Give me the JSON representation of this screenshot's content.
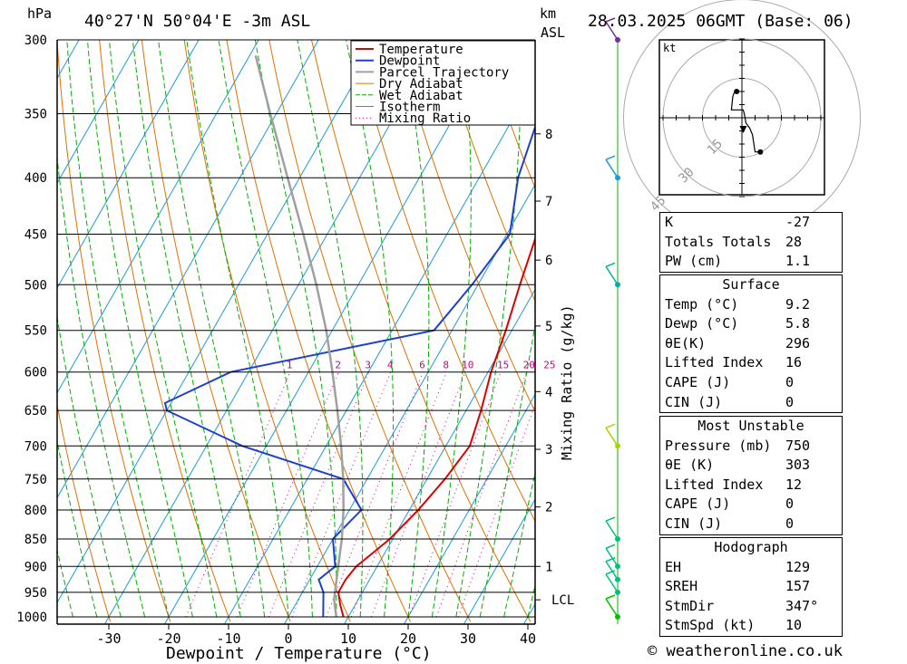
{
  "header": {
    "location": "40°27'N  50°04'E  -3m  ASL",
    "datetime": "28.03.2025  06GMT  (Base: 06)",
    "p_unit": "hPa",
    "km_label": "km",
    "asl_label": "ASL"
  },
  "chart_data": {
    "type": "line",
    "title": "",
    "xlabel": "Dewpoint / Temperature (°C)",
    "ylabel": "hPa",
    "y_scale": "log",
    "xlim": [
      -40,
      40
    ],
    "ylim": [
      1000,
      300
    ],
    "x_ticks": [
      -30,
      -20,
      -10,
      0,
      10,
      20,
      30,
      40
    ],
    "pressure_levels": [
      300,
      350,
      400,
      450,
      500,
      550,
      600,
      650,
      700,
      750,
      800,
      850,
      900,
      950,
      1000
    ],
    "km_ticks": [
      {
        "label": "8",
        "p": 365
      },
      {
        "label": "7",
        "p": 420
      },
      {
        "label": "6",
        "p": 475
      },
      {
        "label": "5",
        "p": 545
      },
      {
        "label": "4",
        "p": 625
      },
      {
        "label": "3",
        "p": 705
      },
      {
        "label": "2",
        "p": 795
      },
      {
        "label": "1",
        "p": 900
      },
      {
        "label": "LCL",
        "p": 965
      }
    ],
    "mixing_ratio_label": "Mixing Ratio (g/kg)",
    "mixing_ratio_values": [
      "1",
      "2",
      "3",
      "4",
      "6",
      "8",
      "10",
      "15",
      "20",
      "25"
    ],
    "legend": {
      "placement": "top-right",
      "entries": [
        {
          "name": "Temperature",
          "color": "#e00000"
        },
        {
          "name": "Dewpoint",
          "color": "#1f3fd0"
        },
        {
          "name": "Parcel Trajectory",
          "color": "#a0a0a0"
        },
        {
          "name": "Dry Adiabat",
          "color": "#e07000"
        },
        {
          "name": "Wet Adiabat",
          "color": "#00b000"
        },
        {
          "name": "Isotherm",
          "color": "#1e9ad6"
        },
        {
          "name": "Mixing Ratio",
          "color": "#d0008a"
        }
      ]
    },
    "series": [
      {
        "name": "Temperature",
        "color": "#e00000",
        "points": [
          {
            "p": 1000,
            "t": 9.2
          },
          {
            "p": 975,
            "t": 7.5
          },
          {
            "p": 950,
            "t": 6.0
          },
          {
            "p": 925,
            "t": 6.0
          },
          {
            "p": 900,
            "t": 6.5
          },
          {
            "p": 875,
            "t": 8.0
          },
          {
            "p": 850,
            "t": 9.5
          },
          {
            "p": 800,
            "t": 11.5
          },
          {
            "p": 750,
            "t": 13.0
          },
          {
            "p": 700,
            "t": 14.0
          },
          {
            "p": 650,
            "t": 12.5
          },
          {
            "p": 600,
            "t": 10.5
          },
          {
            "p": 550,
            "t": 9.0
          },
          {
            "p": 500,
            "t": 7.0
          },
          {
            "p": 450,
            "t": 5.0
          },
          {
            "p": 400,
            "t": 3.5
          },
          {
            "p": 350,
            "t": 0.0
          },
          {
            "p": 300,
            "t": -5.5
          }
        ]
      },
      {
        "name": "Dewpoint",
        "color": "#1f3fd0",
        "points": [
          {
            "p": 1000,
            "t": 5.8
          },
          {
            "p": 950,
            "t": 3.5
          },
          {
            "p": 925,
            "t": 1.5
          },
          {
            "p": 900,
            "t": 3.0
          },
          {
            "p": 850,
            "t": 0.0
          },
          {
            "p": 800,
            "t": 2.0
          },
          {
            "p": 750,
            "t": -4.0
          },
          {
            "p": 700,
            "t": -24.0
          },
          {
            "p": 650,
            "t": -40.0
          },
          {
            "p": 640,
            "t": -41.0
          },
          {
            "p": 600,
            "t": -33.0
          },
          {
            "p": 550,
            "t": -3.0
          },
          {
            "p": 500,
            "t": -1.0
          },
          {
            "p": 450,
            "t": 0.5
          },
          {
            "p": 400,
            "t": -3.5
          },
          {
            "p": 350,
            "t": -6.0
          },
          {
            "p": 300,
            "t": -13.5
          }
        ]
      },
      {
        "name": "Parcel Trajectory",
        "color": "#a0a0a0",
        "points": [
          {
            "p": 1000,
            "t": 8.0
          },
          {
            "p": 965,
            "t": 6.0
          },
          {
            "p": 900,
            "t": 3.5
          },
          {
            "p": 850,
            "t": 1.5
          },
          {
            "p": 800,
            "t": -1.0
          },
          {
            "p": 750,
            "t": -4.0
          },
          {
            "p": 700,
            "t": -7.5
          },
          {
            "p": 650,
            "t": -11.5
          },
          {
            "p": 600,
            "t": -16.0
          },
          {
            "p": 550,
            "t": -21.0
          },
          {
            "p": 500,
            "t": -27.0
          },
          {
            "p": 450,
            "t": -34.0
          },
          {
            "p": 400,
            "t": -42.0
          },
          {
            "p": 350,
            "t": -51.0
          },
          {
            "p": 310,
            "t": -59.0
          }
        ]
      }
    ]
  },
  "hodograph": {
    "unit": "kt",
    "ring_labels": [
      "15",
      "30",
      "45"
    ],
    "points": [
      [
        -2,
        10
      ],
      [
        -3,
        9.5
      ],
      [
        -3.5,
        8
      ],
      [
        -4,
        3
      ],
      [
        0.5,
        3
      ],
      [
        1,
        1
      ],
      [
        1.5,
        -2
      ],
      [
        3,
        -4
      ],
      [
        4,
        -6.5
      ],
      [
        5,
        -13
      ],
      [
        7,
        -13
      ]
    ],
    "storm_motion": [
      0.5,
      -4.5
    ]
  },
  "wind_barbs": [
    {
      "p": 300,
      "color": "#7030a0"
    },
    {
      "p": 400,
      "color": "#1e9ad6"
    },
    {
      "p": 500,
      "color": "#00b0a0"
    },
    {
      "p": 700,
      "color": "#b0d000"
    },
    {
      "p": 850,
      "color": "#00c080"
    },
    {
      "p": 900,
      "color": "#00c080"
    },
    {
      "p": 925,
      "color": "#00c080"
    },
    {
      "p": 950,
      "color": "#00c080"
    },
    {
      "p": 1000,
      "color": "#00c000"
    }
  ],
  "indices": {
    "k": {
      "label": "K",
      "value": "-27"
    },
    "totals": {
      "label": "Totals Totals",
      "value": "28"
    },
    "pw": {
      "label": "PW (cm)",
      "value": "1.1"
    }
  },
  "surface": {
    "title": "Surface",
    "rows": [
      {
        "label": "Temp (°C)",
        "value": "9.2"
      },
      {
        "label": "Dewp (°C)",
        "value": "5.8"
      },
      {
        "label": "θE(K)",
        "value": "296"
      },
      {
        "label": "Lifted Index",
        "value": "16"
      },
      {
        "label": "CAPE (J)",
        "value": "0"
      },
      {
        "label": "CIN (J)",
        "value": "0"
      }
    ]
  },
  "most_unstable": {
    "title": "Most Unstable",
    "rows": [
      {
        "label": "Pressure (mb)",
        "value": "750"
      },
      {
        "label": "θE (K)",
        "value": "303"
      },
      {
        "label": "Lifted Index",
        "value": "12"
      },
      {
        "label": "CAPE (J)",
        "value": "0"
      },
      {
        "label": "CIN (J)",
        "value": "0"
      }
    ]
  },
  "hodograph_table": {
    "title": "Hodograph",
    "rows": [
      {
        "label": "EH",
        "value": "129"
      },
      {
        "label": "SREH",
        "value": "157"
      },
      {
        "label": "StmDir",
        "value": "347°"
      },
      {
        "label": "StmSpd (kt)",
        "value": "10"
      }
    ]
  },
  "credit": "© weatheronline.co.uk"
}
